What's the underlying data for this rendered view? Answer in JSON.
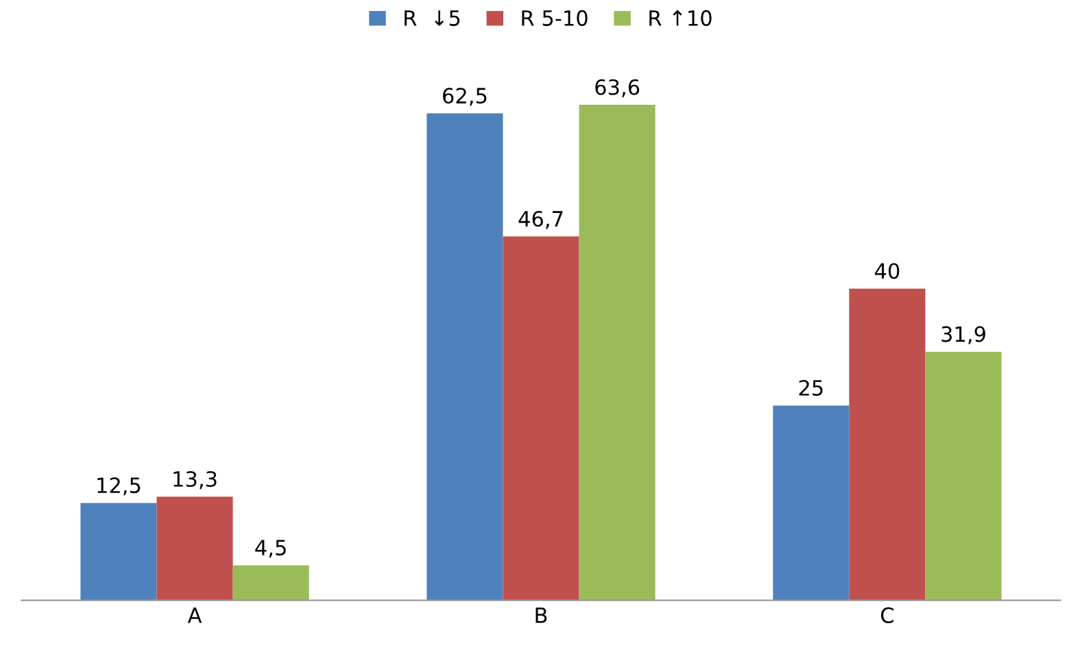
{
  "chart_data": {
    "type": "bar",
    "categories": [
      "A",
      "B",
      "C"
    ],
    "series": [
      {
        "name": "R  ↓5",
        "color": "#4f81bd",
        "values": [
          12.5,
          62.5,
          25
        ],
        "value_labels": [
          "12,5",
          "62,5",
          "25"
        ]
      },
      {
        "name": "R 5-10",
        "color": "#c0504d",
        "values": [
          13.3,
          46.7,
          40
        ],
        "value_labels": [
          "13,3",
          "46,7",
          "40"
        ]
      },
      {
        "name": "R ↑10",
        "color": "#9bbb59",
        "values": [
          4.5,
          63.6,
          31.9
        ],
        "value_labels": [
          "4,5",
          "63,6",
          "31,9"
        ]
      }
    ],
    "legend": "top",
    "grid": false
  }
}
